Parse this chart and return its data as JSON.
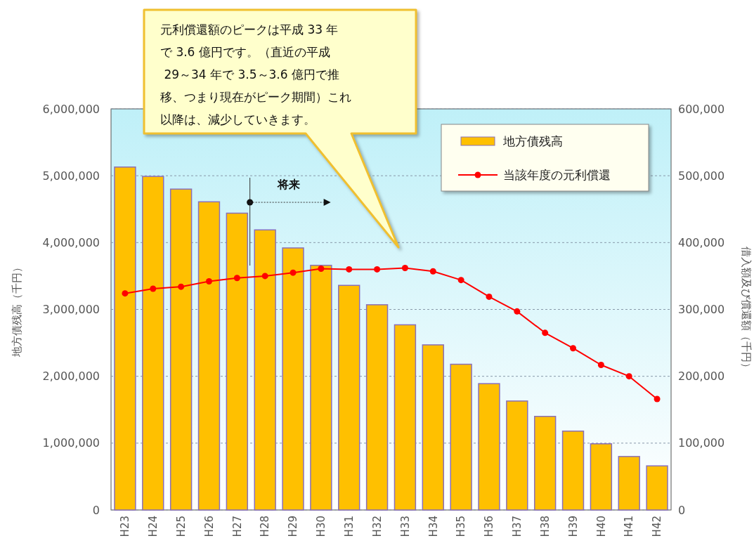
{
  "chart_data": {
    "type": "bar",
    "categories": [
      "H23",
      "H24",
      "H25",
      "H26",
      "H27",
      "H28",
      "H29",
      "H30",
      "H31",
      "H32",
      "H33",
      "H34",
      "H35",
      "H36",
      "H37",
      "H38",
      "H39",
      "H40",
      "H41",
      "H42"
    ],
    "series": [
      {
        "name": "地方債残高",
        "color": "#ffc000",
        "values": [
          5130000,
          4990000,
          4800000,
          4610000,
          4440000,
          4190000,
          3920000,
          3660000,
          3360000,
          3070000,
          2770000,
          2470000,
          2180000,
          1890000,
          1630000,
          1400000,
          1180000,
          990000,
          800000,
          660000
        ]
      },
      {
        "name": "当該年度の元利償還",
        "type": "line",
        "axis": "y2",
        "color": "#ff0000",
        "marker": "circle",
        "values": [
          324000,
          331000,
          334000,
          342000,
          347000,
          350000,
          355000,
          361000,
          360000,
          360000,
          362000,
          357000,
          344000,
          319000,
          297000,
          265000,
          242000,
          217000,
          200000,
          166000
        ]
      }
    ],
    "ylabel": "地方債残高（千円）",
    "y2label": "借入額及び償還額（千円）",
    "ylim": [
      0,
      6000000
    ],
    "yticks": [
      {
        "value": 0,
        "label": "0"
      },
      {
        "value": 1000000,
        "label": "1,000,000"
      },
      {
        "value": 2000000,
        "label": "2,000,000"
      },
      {
        "value": 3000000,
        "label": "3,000,000"
      },
      {
        "value": 4000000,
        "label": "4,000,000"
      },
      {
        "value": 5000000,
        "label": "5,000,000"
      },
      {
        "value": 6000000,
        "label": "6,000,000"
      }
    ],
    "y2lim": [
      0,
      600000
    ],
    "y2ticks": [
      {
        "value": 0,
        "label": "0"
      },
      {
        "value": 100000,
        "label": "100,000"
      },
      {
        "value": 200000,
        "label": "200,000"
      },
      {
        "value": 300000,
        "label": "300,000"
      },
      {
        "value": 400000,
        "label": "400,000"
      },
      {
        "value": 500000,
        "label": "500,000"
      },
      {
        "value": 600000,
        "label": "600,000"
      }
    ],
    "grid": "y",
    "legend": "top right",
    "annotations": [
      "元利償還額のピークは平成 33 年で 3.6 億円です。（直近の平成 29～34 年で 3.5～3.6 億円で推移、つまり現在がピーク期間）これ以降は、減少していきます。",
      "将来"
    ]
  }
}
